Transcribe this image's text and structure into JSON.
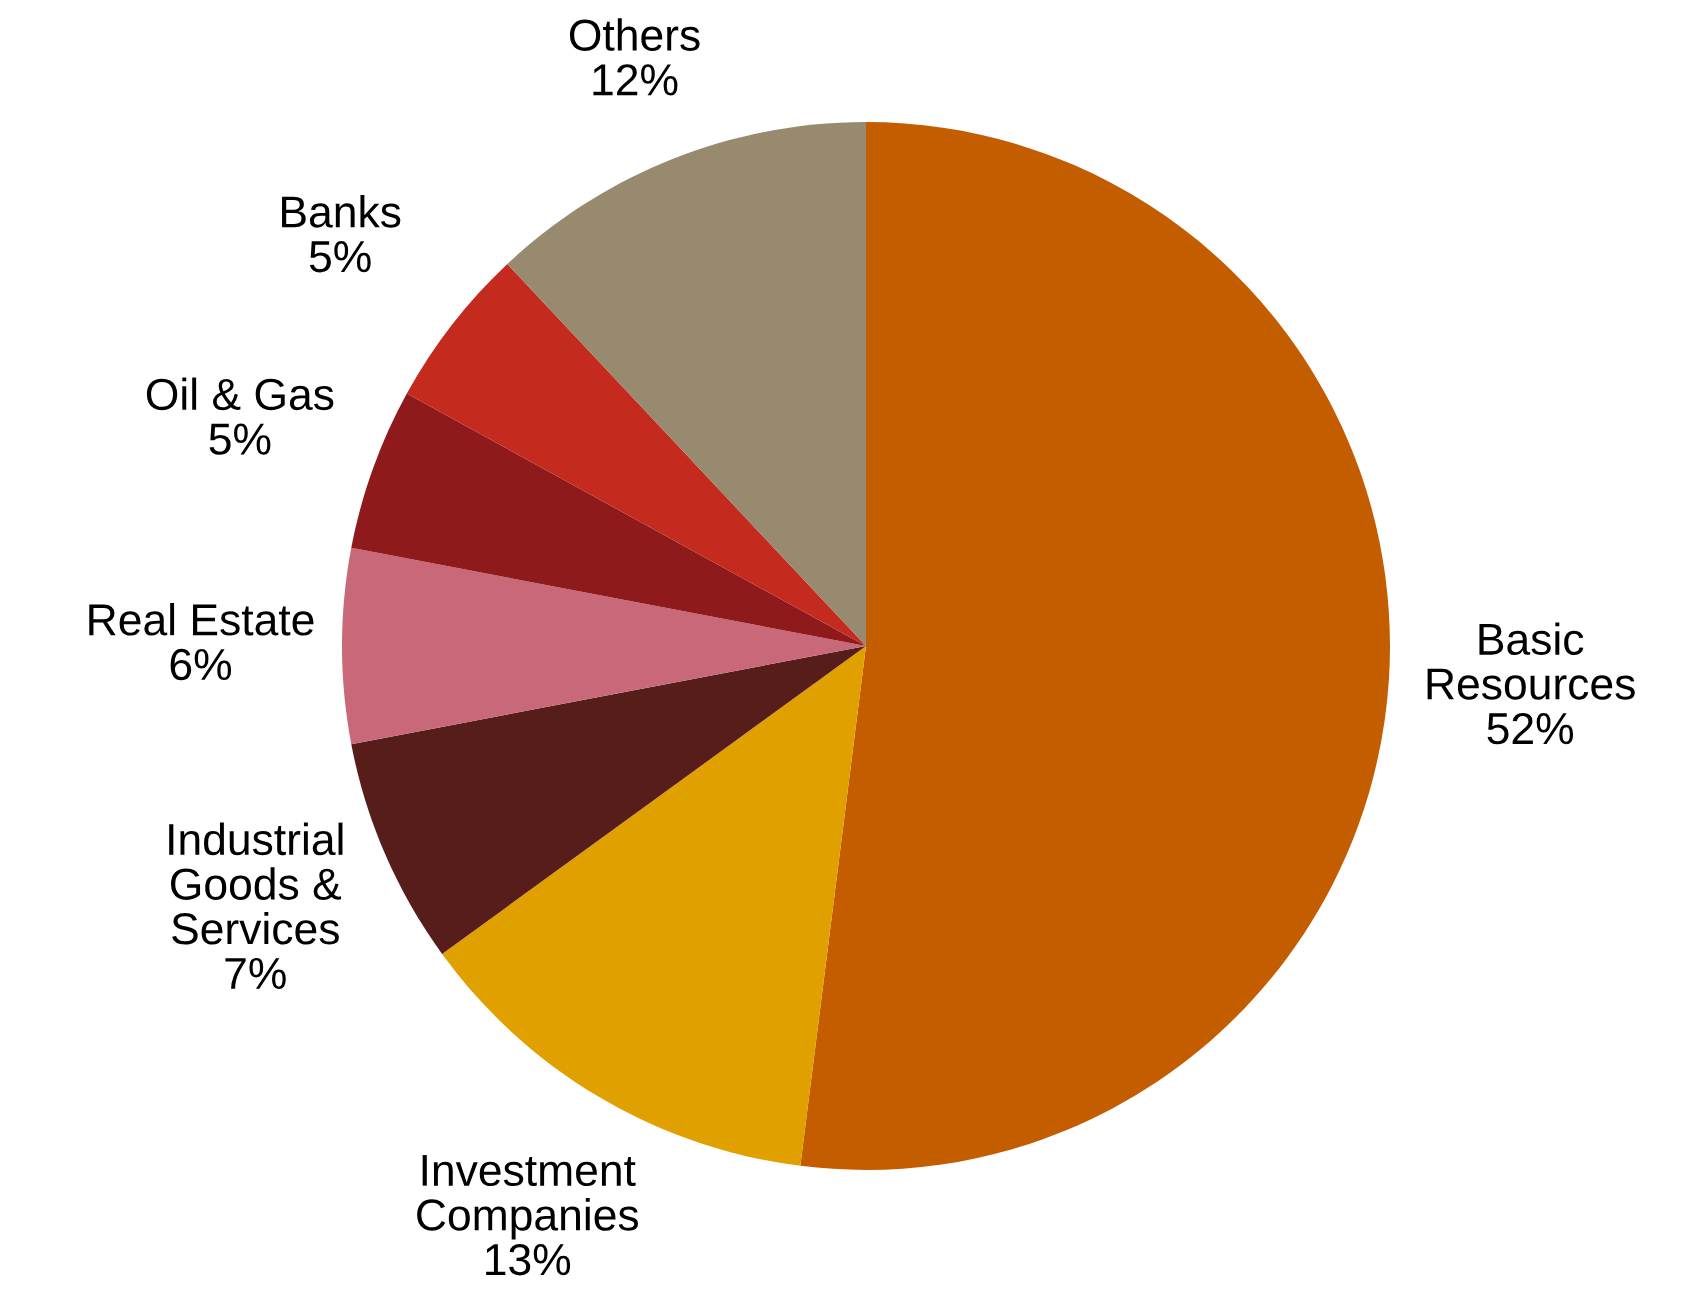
{
  "chart_data": {
    "type": "pie",
    "categories": [
      "Basic\nResources",
      "Investment\nCompanies",
      "Industrial\nGoods &\nServices",
      "Real Estate",
      "Oil & Gas",
      "Banks",
      "Others"
    ],
    "values": [
      52,
      13,
      7,
      6,
      5,
      5,
      12
    ],
    "colors": [
      "#c45c00",
      "#e0a000",
      "#561d1a",
      "#c86878",
      "#8e1a1c",
      "#c42a1e",
      "#978a6e"
    ],
    "value_labels": [
      "52%",
      "13%",
      "7%",
      "6%",
      "5%",
      "5%",
      "12%"
    ]
  }
}
